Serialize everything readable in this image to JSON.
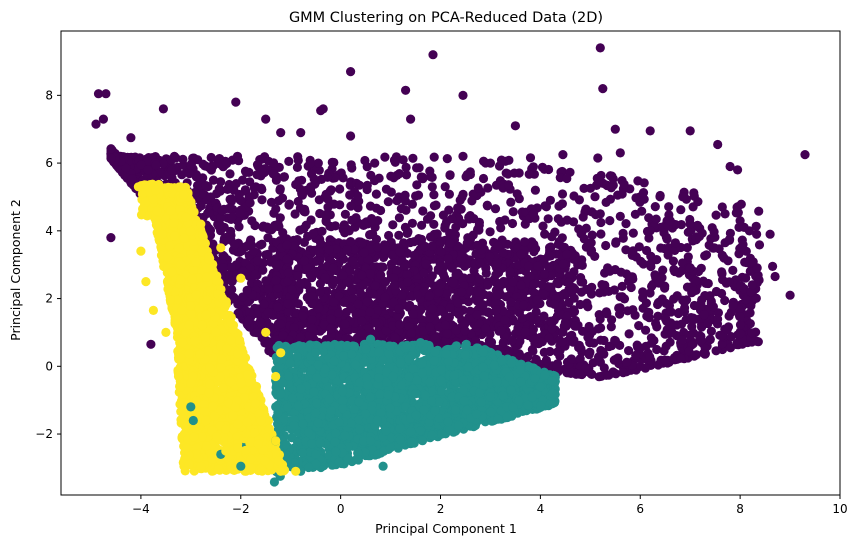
{
  "chart_data": {
    "type": "scatter",
    "title": "GMM Clustering on PCA-Reduced Data (2D)",
    "xlabel": "Principal Component 1",
    "ylabel": "Principal Component 2",
    "xlim": [
      -5.6,
      10.0
    ],
    "ylim": [
      -3.8,
      9.9
    ],
    "xticks": [
      -4,
      -2,
      0,
      2,
      4,
      6,
      8,
      10
    ],
    "yticks": [
      -2,
      0,
      2,
      4,
      6,
      8
    ],
    "xtick_labels": [
      "−4",
      "−2",
      "0",
      "2",
      "4",
      "6",
      "8",
      "10"
    ],
    "ytick_labels": [
      "−2",
      "0",
      "2",
      "4",
      "6",
      "8"
    ],
    "grid": false,
    "legend": "none",
    "colors": {
      "cluster_0": "#440154",
      "cluster_1": "#21918c",
      "cluster_2": "#fde725"
    },
    "series": [
      {
        "color": "#440154",
        "points": [
          [
            -4.85,
            8.05
          ],
          [
            -4.7,
            8.05
          ],
          [
            -4.9,
            7.15
          ],
          [
            -4.75,
            7.3
          ],
          [
            -3.55,
            7.6
          ],
          [
            -2.1,
            7.8
          ],
          [
            -1.5,
            7.3
          ],
          [
            -0.4,
            7.55
          ],
          [
            -0.35,
            7.6
          ],
          [
            0.2,
            8.7
          ],
          [
            1.3,
            8.15
          ],
          [
            1.85,
            9.2
          ],
          [
            2.45,
            8.0
          ],
          [
            5.2,
            9.4
          ],
          [
            5.25,
            8.2
          ],
          [
            1.4,
            7.3
          ],
          [
            3.5,
            7.1
          ],
          [
            5.5,
            7.0
          ],
          [
            6.2,
            6.95
          ],
          [
            7.0,
            6.95
          ],
          [
            7.55,
            6.55
          ],
          [
            7.8,
            5.9
          ],
          [
            7.95,
            5.8
          ],
          [
            9.3,
            6.25
          ],
          [
            5.6,
            6.3
          ],
          [
            4.45,
            6.25
          ],
          [
            5.15,
            6.15
          ],
          [
            2.45,
            6.2
          ],
          [
            3.0,
            6.0
          ],
          [
            0.2,
            6.8
          ],
          [
            -0.8,
            6.9
          ],
          [
            -1.2,
            6.9
          ],
          [
            -4.2,
            6.75
          ],
          [
            -4.6,
            3.8
          ],
          [
            -3.8,
            0.65
          ],
          [
            8.6,
            3.9
          ],
          [
            8.65,
            2.95
          ],
          [
            8.7,
            2.65
          ],
          [
            9.0,
            2.1
          ],
          [
            8.0,
            4.3
          ],
          [
            7.7,
            4.5
          ],
          [
            7.0,
            4.2
          ],
          [
            5.2,
            4.5
          ],
          [
            6.2,
            4.0
          ],
          [
            1.8,
            5.6
          ],
          [
            3.9,
            5.2
          ],
          [
            4.2,
            4.9
          ],
          [
            -2.6,
            5.0
          ],
          [
            -0.6,
            5.3
          ],
          [
            0.8,
            4.6
          ]
        ]
      },
      {
        "color": "#21918c",
        "points": [
          [
            -0.8,
            -3.1
          ],
          [
            0.85,
            -2.95
          ],
          [
            -2.0,
            -2.95
          ],
          [
            -2.4,
            -2.6
          ],
          [
            -2.95,
            -1.6
          ],
          [
            -3.0,
            -1.2
          ],
          [
            -0.5,
            -2.6
          ],
          [
            0.6,
            -2.2
          ],
          [
            1.6,
            -1.9
          ],
          [
            2.3,
            -1.3
          ],
          [
            3.0,
            -0.9
          ],
          [
            4.0,
            -0.6
          ],
          [
            3.6,
            -0.1
          ],
          [
            2.5,
            0.6
          ],
          [
            1.6,
            0.7
          ],
          [
            0.6,
            0.8
          ],
          [
            -0.5,
            0.4
          ],
          [
            -1.2,
            0.2
          ],
          [
            -1.3,
            -1.2
          ],
          [
            -1.3,
            -2.2
          ]
        ]
      },
      {
        "color": "#fde725",
        "points": [
          [
            -4.05,
            5.3
          ],
          [
            -3.9,
            5.35
          ],
          [
            -3.7,
            5.2
          ],
          [
            -3.4,
            4.6
          ],
          [
            -3.1,
            4.4
          ],
          [
            -4.0,
            3.4
          ],
          [
            -3.9,
            2.5
          ],
          [
            -3.75,
            1.65
          ],
          [
            -3.5,
            1.0
          ],
          [
            -3.0,
            -0.5
          ],
          [
            -2.7,
            -1.6
          ],
          [
            -2.3,
            -2.5
          ],
          [
            -1.8,
            -3.0
          ],
          [
            -1.2,
            -3.1
          ],
          [
            -0.9,
            -3.1
          ],
          [
            -1.3,
            -2.2
          ],
          [
            -1.3,
            -0.3
          ],
          [
            -1.2,
            0.4
          ],
          [
            -1.5,
            1.0
          ],
          [
            -2.0,
            2.6
          ],
          [
            -2.4,
            3.5
          ],
          [
            -2.8,
            4.2
          ],
          [
            -3.2,
            3.0
          ],
          [
            -2.5,
            1.0
          ],
          [
            -2.0,
            -0.5
          ]
        ]
      }
    ]
  }
}
